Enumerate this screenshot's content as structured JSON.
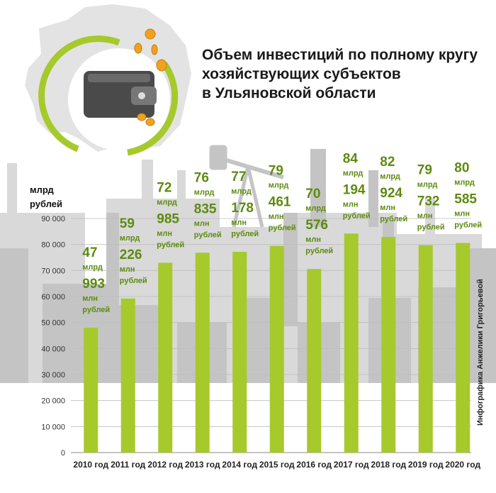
{
  "title": {
    "line1": "Объем инвестиций по полному кругу",
    "line2": "хозяйствующих субъектов",
    "line3": "в Ульяновской области"
  },
  "credit": "Инфографика Анжелики Григорьевой",
  "chart_data": {
    "type": "bar",
    "ylabel_line1": "млрд",
    "ylabel_line2": "рублей",
    "ylim": [
      0,
      90000
    ],
    "yticks": [
      "0",
      "10 000",
      "20 000",
      "30 000",
      "40 000",
      "50 000",
      "60 000",
      "70 000",
      "80 000",
      "90 000"
    ],
    "categories": [
      "2010 год",
      "2011 год",
      "2012 год",
      "2013 год",
      "2014 год",
      "2015 год",
      "2016 год",
      "2017 год",
      "2018 год",
      "2019 год",
      "2020 год"
    ],
    "values": [
      47993,
      59226,
      72985,
      76835,
      77178,
      79461,
      70576,
      84194,
      82924,
      79732,
      80585
    ],
    "labels": [
      {
        "bn": "47",
        "bn_unit": "млрд",
        "mln": "993",
        "mln_unit1": "млн",
        "mln_unit2": "рублей"
      },
      {
        "bn": "59",
        "bn_unit": "млрд",
        "mln": "226",
        "mln_unit1": "млн",
        "mln_unit2": "рублей"
      },
      {
        "bn": "72",
        "bn_unit": "млрд",
        "mln": "985",
        "mln_unit1": "млн",
        "mln_unit2": "рублей"
      },
      {
        "bn": "76",
        "bn_unit": "млрд",
        "mln": "835",
        "mln_unit1": "млн",
        "mln_unit2": "рублей"
      },
      {
        "bn": "77",
        "bn_unit": "млрд",
        "mln": "178",
        "mln_unit1": "млн",
        "mln_unit2": "рублей"
      },
      {
        "bn": "79",
        "bn_unit": "млрд",
        "mln": "461",
        "mln_unit1": "млн",
        "mln_unit2": "рублей"
      },
      {
        "bn": "70",
        "bn_unit": "млрд",
        "mln": "576",
        "mln_unit1": "млн",
        "mln_unit2": "рублей"
      },
      {
        "bn": "84",
        "bn_unit": "млрд",
        "mln": "194",
        "mln_unit1": "млн",
        "mln_unit2": "рублей"
      },
      {
        "bn": "82",
        "bn_unit": "млрд",
        "mln": "924",
        "mln_unit1": "млн",
        "mln_unit2": "рублей"
      },
      {
        "bn": "79",
        "bn_unit": "млрд",
        "mln": "732",
        "mln_unit1": "млн",
        "mln_unit2": "рублей"
      },
      {
        "bn": "80",
        "bn_unit": "млрд",
        "mln": "585",
        "mln_unit1": "млн",
        "mln_unit2": "рублей"
      }
    ]
  },
  "colors": {
    "bar": "#a6c92c",
    "label": "#5e8a10",
    "axis": "#666666",
    "skyline_dark": "#c5c5c5",
    "skyline_light": "#dcdcdc",
    "map": "#e2e2e2",
    "wallet": "#555555"
  }
}
